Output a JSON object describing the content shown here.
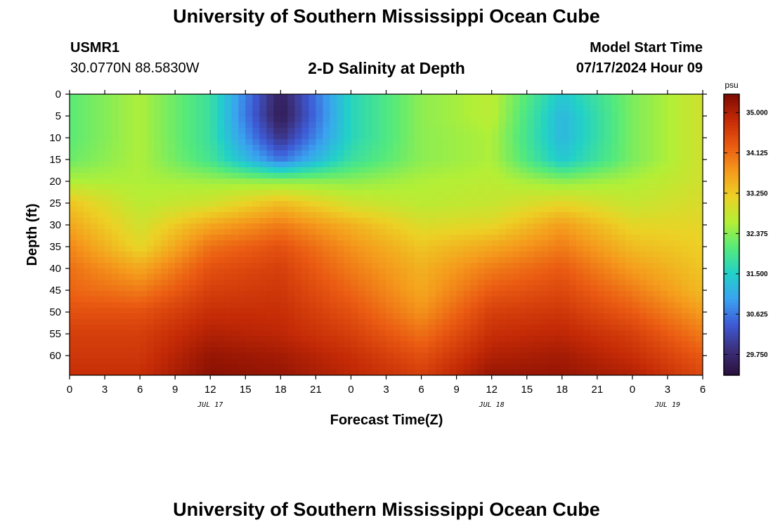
{
  "page": {
    "title": "University of Southern Mississippi Ocean Cube",
    "footer_title": "University of Southern Mississippi Ocean Cube",
    "station": "USMR1",
    "coords": "30.0770N  88.5830W",
    "plot_title": "2-D Salinity at Depth",
    "model_start_label": "Model Start Time",
    "model_start_value": "07/17/2024 Hour 09"
  },
  "chart_data": {
    "type": "heatmap",
    "title": "2-D Salinity at Depth",
    "xlabel": "Forecast Time(Z)",
    "ylabel": "Depth (ft)",
    "x_hours": [
      0,
      6,
      12,
      18,
      24,
      30,
      36,
      42,
      48,
      54
    ],
    "x_ticks": [
      {
        "h": 0,
        "label": "0"
      },
      {
        "h": 3,
        "label": "3"
      },
      {
        "h": 6,
        "label": "6"
      },
      {
        "h": 9,
        "label": "9"
      },
      {
        "h": 12,
        "label": "12"
      },
      {
        "h": 15,
        "label": "15"
      },
      {
        "h": 18,
        "label": "18"
      },
      {
        "h": 21,
        "label": "21"
      },
      {
        "h": 24,
        "label": "0"
      },
      {
        "h": 27,
        "label": "3"
      },
      {
        "h": 30,
        "label": "6"
      },
      {
        "h": 33,
        "label": "9"
      },
      {
        "h": 36,
        "label": "12"
      },
      {
        "h": 39,
        "label": "15"
      },
      {
        "h": 42,
        "label": "18"
      },
      {
        "h": 45,
        "label": "21"
      },
      {
        "h": 48,
        "label": "0"
      },
      {
        "h": 51,
        "label": "3"
      },
      {
        "h": 54,
        "label": "6"
      }
    ],
    "date_labels": [
      {
        "h": 12,
        "label": "JUL 17"
      },
      {
        "h": 36,
        "label": "JUL 18"
      },
      {
        "h": 51,
        "label": "JUL 19"
      }
    ],
    "xlim": [
      0,
      54
    ],
    "ylim": [
      64.5,
      0
    ],
    "y_ticks": [
      0,
      5,
      10,
      15,
      20,
      25,
      30,
      35,
      40,
      45,
      50,
      55,
      60
    ],
    "depths_ft": [
      0,
      5,
      10,
      15,
      20,
      25,
      30,
      35,
      40,
      45,
      50,
      55,
      60,
      64.5
    ],
    "salinity_psu": [
      [
        32.1,
        32.6,
        31.8,
        29.6,
        31.6,
        32.4,
        32.7,
        31.4,
        32.3,
        32.9
      ],
      [
        32.1,
        32.6,
        31.8,
        29.5,
        31.6,
        32.4,
        32.7,
        31.2,
        32.3,
        32.9
      ],
      [
        32.1,
        32.6,
        31.8,
        29.9,
        31.6,
        32.4,
        32.6,
        31.2,
        32.3,
        32.9
      ],
      [
        32.2,
        32.6,
        31.9,
        30.6,
        31.8,
        32.4,
        32.6,
        31.4,
        32.3,
        32.9
      ],
      [
        32.6,
        32.6,
        32.5,
        32.4,
        32.4,
        32.6,
        32.7,
        32.4,
        32.6,
        32.9
      ],
      [
        33.3,
        32.7,
        32.9,
        33.4,
        32.9,
        32.7,
        32.8,
        33.1,
        32.8,
        33.0
      ],
      [
        33.6,
        32.9,
        33.6,
        34.0,
        33.5,
        33.0,
        33.1,
        33.7,
        33.1,
        33.1
      ],
      [
        33.9,
        33.1,
        34.1,
        34.4,
        33.8,
        33.3,
        33.6,
        34.0,
        33.4,
        33.2
      ],
      [
        34.1,
        33.6,
        34.4,
        34.6,
        34.0,
        33.5,
        34.0,
        34.3,
        33.7,
        33.3
      ],
      [
        34.2,
        34.0,
        34.6,
        34.7,
        34.2,
        33.6,
        34.3,
        34.5,
        34.0,
        33.4
      ],
      [
        34.4,
        34.4,
        34.8,
        34.8,
        34.4,
        33.8,
        34.6,
        34.7,
        34.3,
        33.7
      ],
      [
        34.6,
        34.6,
        35.0,
        34.9,
        34.6,
        34.1,
        34.8,
        34.9,
        34.6,
        34.0
      ],
      [
        34.7,
        34.7,
        35.2,
        35.1,
        34.8,
        34.4,
        35.0,
        35.1,
        34.8,
        34.3
      ],
      [
        34.8,
        34.8,
        35.3,
        35.2,
        34.9,
        34.6,
        35.2,
        35.2,
        35.0,
        34.5
      ]
    ],
    "colorbar": {
      "unit": "psu",
      "min": 29.3,
      "max": 35.4,
      "ticks": [
        {
          "v": 35.0,
          "label": "35.000"
        },
        {
          "v": 34.125,
          "label": "34.125"
        },
        {
          "v": 33.25,
          "label": "33.250"
        },
        {
          "v": 32.375,
          "label": "32.375"
        },
        {
          "v": 31.5,
          "label": "31.500"
        },
        {
          "v": 30.625,
          "label": "30.625"
        },
        {
          "v": 29.75,
          "label": "29.750"
        }
      ],
      "colors": [
        "#2a0f3d",
        "#3b2f7a",
        "#3e5ad6",
        "#3aa3f0",
        "#22d1c8",
        "#55ea7a",
        "#b3ef36",
        "#ecd125",
        "#f59a1c",
        "#ea5a12",
        "#c42a06",
        "#7d0a02"
      ]
    }
  }
}
